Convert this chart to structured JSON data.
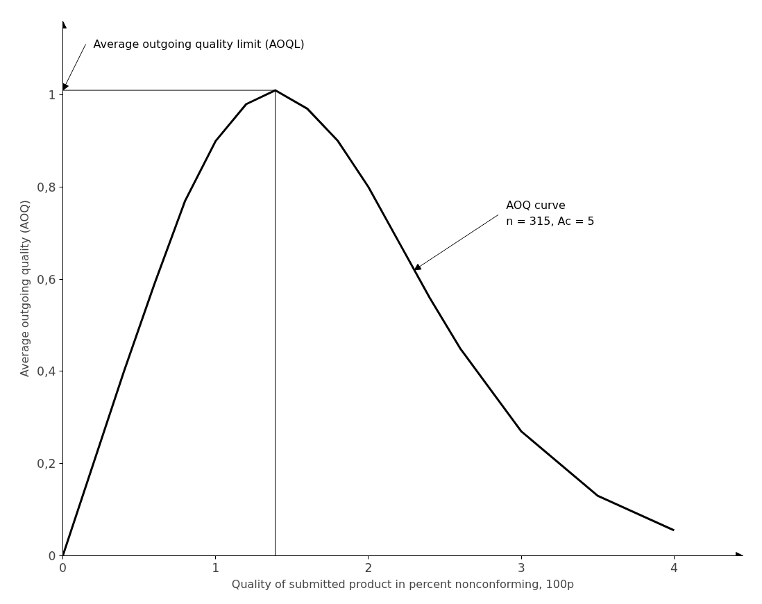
{
  "chart_data": {
    "type": "line",
    "xlabel": "Quality of submitted product in percent nonconforming, 100p",
    "ylabel": "Average outgoing quality (AOQ)",
    "x": [
      0,
      0.2,
      0.4,
      0.6,
      0.8,
      1.0,
      1.2,
      1.39,
      1.6,
      1.8,
      2.0,
      2.2,
      2.4,
      2.6,
      2.8,
      3.0,
      3.5,
      4.0
    ],
    "series": [
      {
        "color": "#000000",
        "values": [
          0,
          0.2,
          0.4,
          0.59,
          0.77,
          0.9,
          0.98,
          1.01,
          0.97,
          0.9,
          0.8,
          0.68,
          0.56,
          0.45,
          0.36,
          0.27,
          0.13,
          0.055
        ]
      }
    ],
    "xlim": [
      0,
      4.45
    ],
    "ylim": [
      0,
      1.16
    ],
    "xticks": [
      0,
      1,
      2,
      3,
      4
    ],
    "yticks": [
      0,
      {
        "value": 0.2,
        "label": "0,2"
      },
      {
        "value": 0.4,
        "label": "0,4"
      },
      {
        "value": 0.6,
        "label": "0,6"
      },
      {
        "value": 0.8,
        "label": "0,8"
      },
      1
    ],
    "ref_lines": [
      {
        "axis": "x",
        "value": 1.39,
        "color": "#000000"
      },
      {
        "axis": "y",
        "value": 1.01,
        "color": "#000000"
      }
    ],
    "annotations": [
      {
        "text": "Average outgoing quality limit (AOQL)",
        "x": 0,
        "y": 1.01
      },
      {
        "text": "AOQ curve\nn = 315, Ac = 5",
        "x": 2.3,
        "y": 0.62
      }
    ],
    "grid": false,
    "marker": "none",
    "line_style": "solid"
  }
}
